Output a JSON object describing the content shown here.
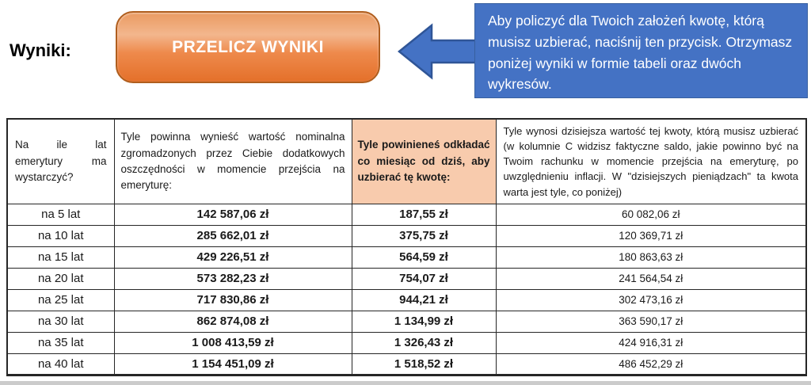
{
  "top": {
    "results_label": "Wyniki:",
    "button_label": "PRZELICZ WYNIKI",
    "callout_text": "Aby policzyć dla Twoich założeń kwotę, którą musisz uzbierać, naciśnij ten przycisk. Otrzymasz poniżej wyniki w formie tabeli oraz dwóch wykresów."
  },
  "colors": {
    "callout_blue": "#4472C4",
    "callout_border": "#2F5597",
    "button_orange": "#ED7D31",
    "button_border": "#B05E1E",
    "highlight_cell_orange": "#F8CBAD"
  },
  "table": {
    "headers": [
      "Na ile lat emerytury ma wystarczyć?",
      "Tyle powinna wynieść wartość nominalna zgromadzonych przez Ciebie dodatkowych oszczędności w momencie przejścia na emeryturę:",
      "Tyle powinieneś odkładać co miesiąc od dziś, aby uzbierać tę kwotę:",
      "Tyle wynosi dzisiejsza wartość tej kwoty, którą musisz uzbierać (w kolumnie C widzisz faktyczne saldo, jakie powinno być na Twoim rachunku w momencie przejścia na emeryturę, po uwzględnieniu inflacji. W \"dzisiejszych pieniądzach\" ta kwota warta jest tyle, co poniżej)"
    ],
    "rows": [
      [
        "na 5 lat",
        "142 587,06 zł",
        "187,55 zł",
        "60 082,06 zł"
      ],
      [
        "na 10 lat",
        "285 662,01 zł",
        "375,75 zł",
        "120 369,71 zł"
      ],
      [
        "na 15 lat",
        "429 226,51 zł",
        "564,59 zł",
        "180 863,63 zł"
      ],
      [
        "na 20 lat",
        "573 282,23 zł",
        "754,07 zł",
        "241 564,54 zł"
      ],
      [
        "na 25 lat",
        "717 830,86 zł",
        "944,21 zł",
        "302 473,16 zł"
      ],
      [
        "na 30 lat",
        "862 874,08 zł",
        "1 134,99 zł",
        "363 590,17 zł"
      ],
      [
        "na 35 lat",
        "1 008 413,59 zł",
        "1 326,43 zł",
        "424 916,31 zł"
      ],
      [
        "na 40 lat",
        "1 154 451,09 zł",
        "1 518,52 zł",
        "486 452,29 zł"
      ]
    ]
  }
}
